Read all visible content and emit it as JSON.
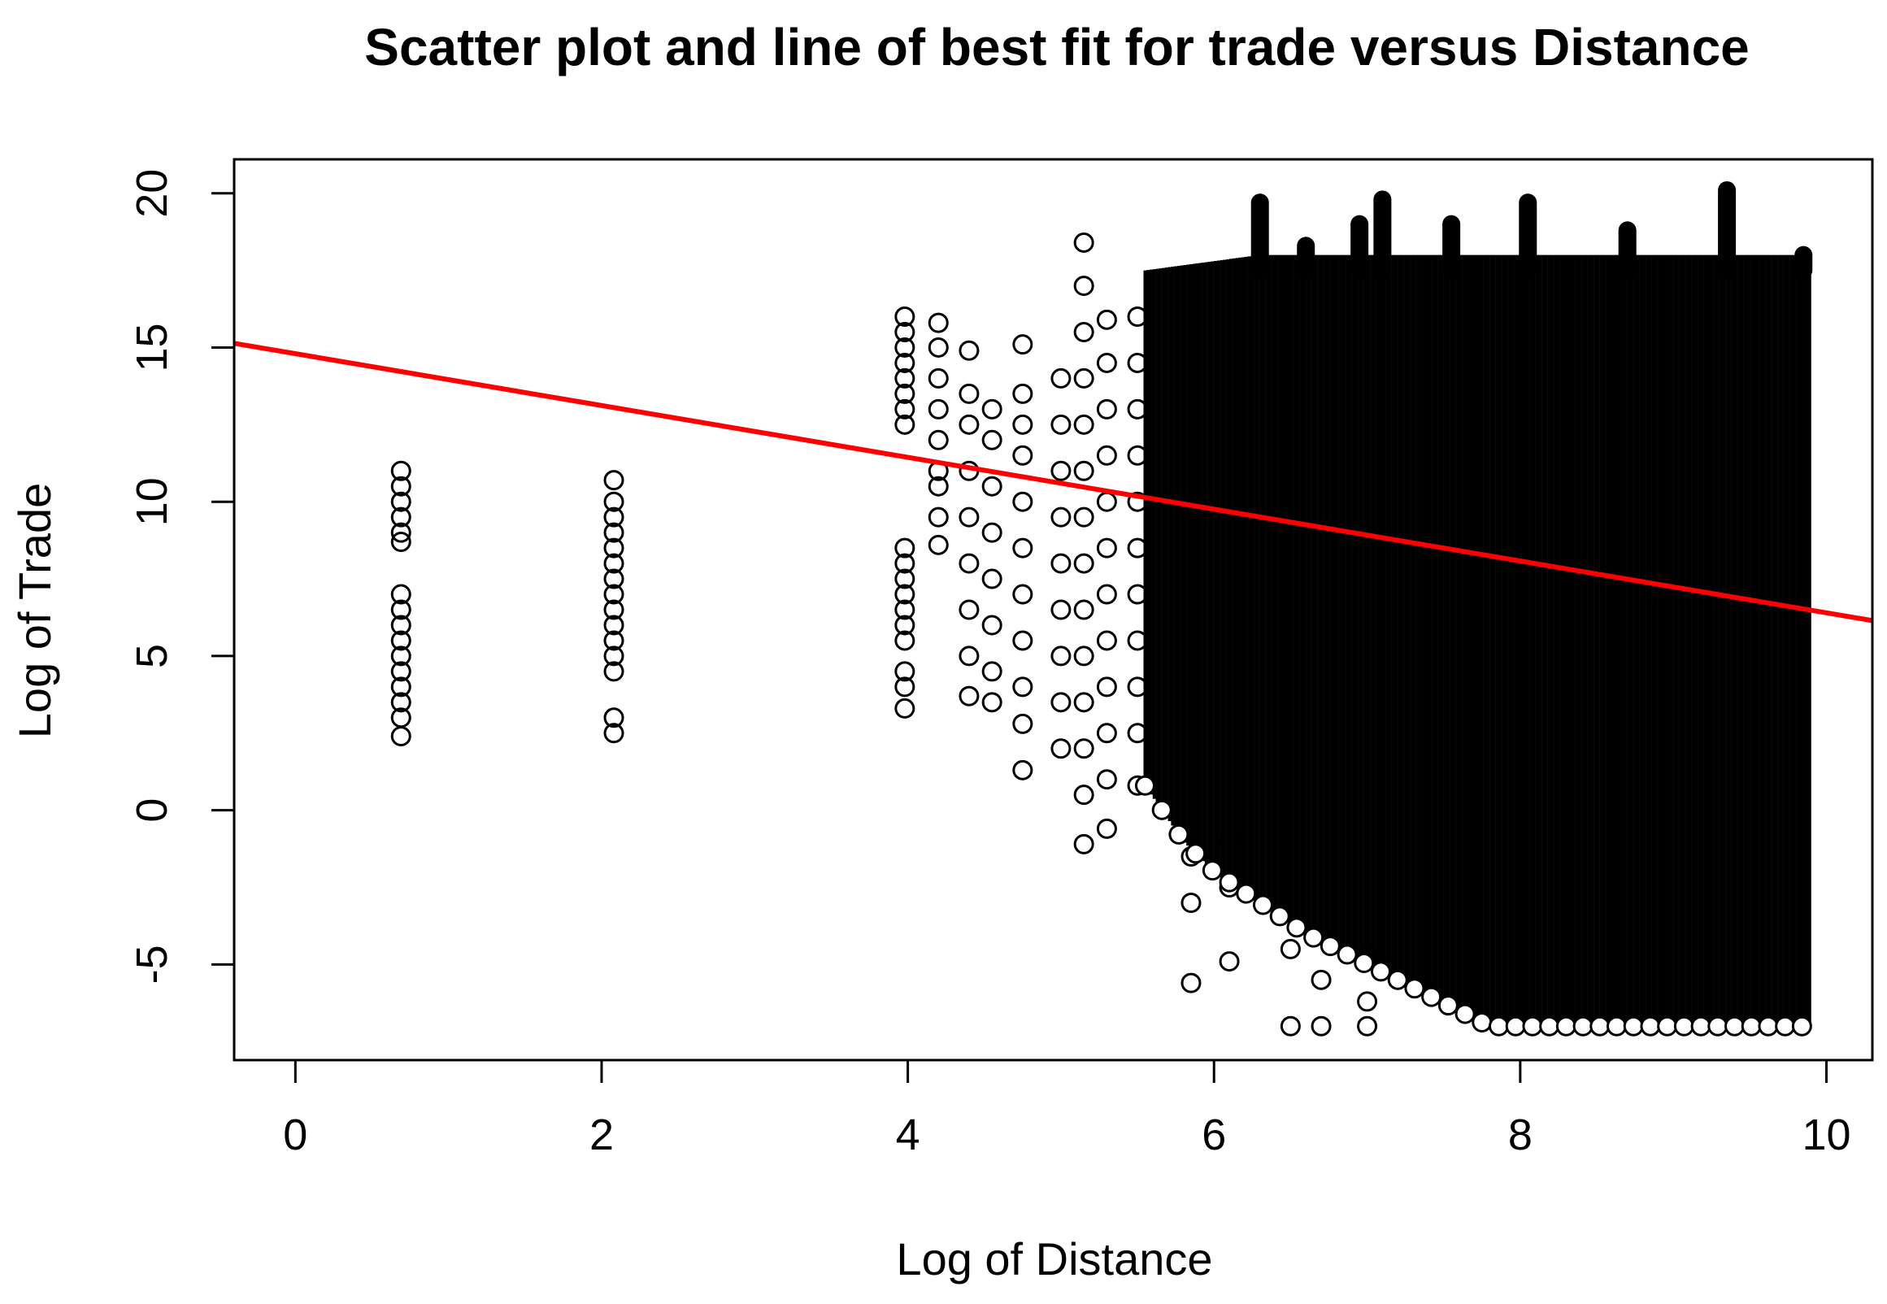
{
  "chart_data": {
    "type": "scatter",
    "title": "Scatter plot and line of best fit for trade versus Distance",
    "xlabel": "Log of Distance",
    "ylabel": "Log of Trade",
    "xlim": [
      -0.4,
      10.3
    ],
    "ylim": [
      -8.1,
      21.1
    ],
    "x_ticks": [
      "0",
      "2",
      "4",
      "6",
      "8",
      "10"
    ],
    "y_ticks": [
      "-5",
      "0",
      "5",
      "10",
      "15",
      "20"
    ],
    "grid": false,
    "marker": "open-circle",
    "point_color": "#000000",
    "fit_line": {
      "color": "#ff0000",
      "intercept": 14.8,
      "slope": -0.84
    },
    "clusters": [
      {
        "x": 0.69,
        "y_points": [
          2.4,
          3.0,
          3.5,
          4.0,
          4.5,
          5.0,
          5.5,
          6.0,
          6.5,
          7.0,
          8.7,
          9.0,
          9.5,
          10.0,
          10.5,
          11.0
        ]
      },
      {
        "x": 2.08,
        "y_points": [
          2.5,
          3.0,
          4.5,
          5.0,
          5.5,
          6.0,
          6.5,
          7.0,
          7.5,
          8.0,
          8.5,
          9.0,
          9.5,
          10.0,
          10.7
        ]
      },
      {
        "x": 3.98,
        "y_points": [
          3.3,
          4.0,
          4.5,
          5.5,
          6.0,
          6.5,
          7.0,
          7.5,
          8.0,
          8.5,
          12.5,
          13.0,
          13.5,
          14.0,
          14.5,
          15.0,
          15.5,
          16.0
        ]
      },
      {
        "x": 4.2,
        "y_points": [
          8.6,
          9.5,
          10.5,
          11.0,
          12.0,
          13.0,
          14.0,
          15.0,
          15.8
        ]
      },
      {
        "x": 4.4,
        "y_points": [
          3.7,
          5.0,
          6.5,
          8.0,
          9.5,
          11.0,
          12.5,
          13.5,
          14.9
        ]
      },
      {
        "x": 4.55,
        "y_points": [
          3.5,
          4.5,
          6.0,
          7.5,
          9.0,
          10.5,
          12.0,
          13.0
        ]
      },
      {
        "x": 4.75,
        "y_points": [
          1.3,
          2.8,
          4.0,
          5.5,
          7.0,
          8.5,
          10.0,
          11.5,
          12.5,
          13.5,
          15.1
        ]
      },
      {
        "x": 5.0,
        "y_points": [
          2.0,
          3.5,
          5.0,
          6.5,
          8.0,
          9.5,
          11.0,
          12.5,
          14.0
        ]
      },
      {
        "x": 5.15,
        "y_points": [
          -1.1,
          0.5,
          2.0,
          3.5,
          5.0,
          6.5,
          8.0,
          9.5,
          11.0,
          12.5,
          14.0,
          15.5,
          17.0,
          18.4
        ]
      },
      {
        "x": 5.3,
        "y_points": [
          -0.6,
          1.0,
          2.5,
          4.0,
          5.5,
          7.0,
          8.5,
          10.0,
          11.5,
          13.0,
          14.5,
          15.9
        ]
      },
      {
        "x": 5.5,
        "y_points": [
          0.8,
          2.5,
          4.0,
          5.5,
          7.0,
          8.5,
          10.0,
          11.5,
          13.0,
          14.5,
          16.0
        ]
      },
      {
        "x": 5.85,
        "y_points": [
          -5.6,
          -3.0,
          -1.5
        ]
      },
      {
        "x": 6.1,
        "y_points": [
          -4.9,
          -2.5,
          -1.0
        ]
      },
      {
        "x": 6.5,
        "y_points": [
          -7.0,
          -4.5
        ]
      },
      {
        "x": 6.7,
        "y_points": [
          -7.0,
          -5.5,
          -4.0
        ]
      },
      {
        "x": 7.0,
        "y_points": [
          -7.0,
          -6.2,
          -4.7
        ]
      }
    ],
    "dense_band": {
      "x_range": [
        5.55,
        9.9
      ],
      "y_lower": [
        [
          5.55,
          0.8
        ],
        [
          5.8,
          -1.0
        ],
        [
          6.0,
          -2.0
        ],
        [
          6.3,
          -3.0
        ],
        [
          6.6,
          -4.0
        ],
        [
          7.0,
          -5.0
        ],
        [
          7.4,
          -6.0
        ],
        [
          7.8,
          -7.0
        ],
        [
          9.9,
          -7.0
        ]
      ],
      "y_upper": [
        [
          5.55,
          17.5
        ],
        [
          6.3,
          18.0
        ],
        [
          7.0,
          18.0
        ],
        [
          9.9,
          18.0
        ]
      ]
    },
    "spikes": [
      {
        "x": 6.3,
        "y_top": 19.7
      },
      {
        "x": 6.6,
        "y_top": 18.3
      },
      {
        "x": 6.95,
        "y_top": 19.0
      },
      {
        "x": 7.1,
        "y_top": 19.8
      },
      {
        "x": 7.55,
        "y_top": 19.0
      },
      {
        "x": 8.05,
        "y_top": 19.7
      },
      {
        "x": 8.7,
        "y_top": 18.8
      },
      {
        "x": 9.35,
        "y_top": 20.1
      },
      {
        "x": 9.85,
        "y_top": 18.0
      }
    ]
  }
}
